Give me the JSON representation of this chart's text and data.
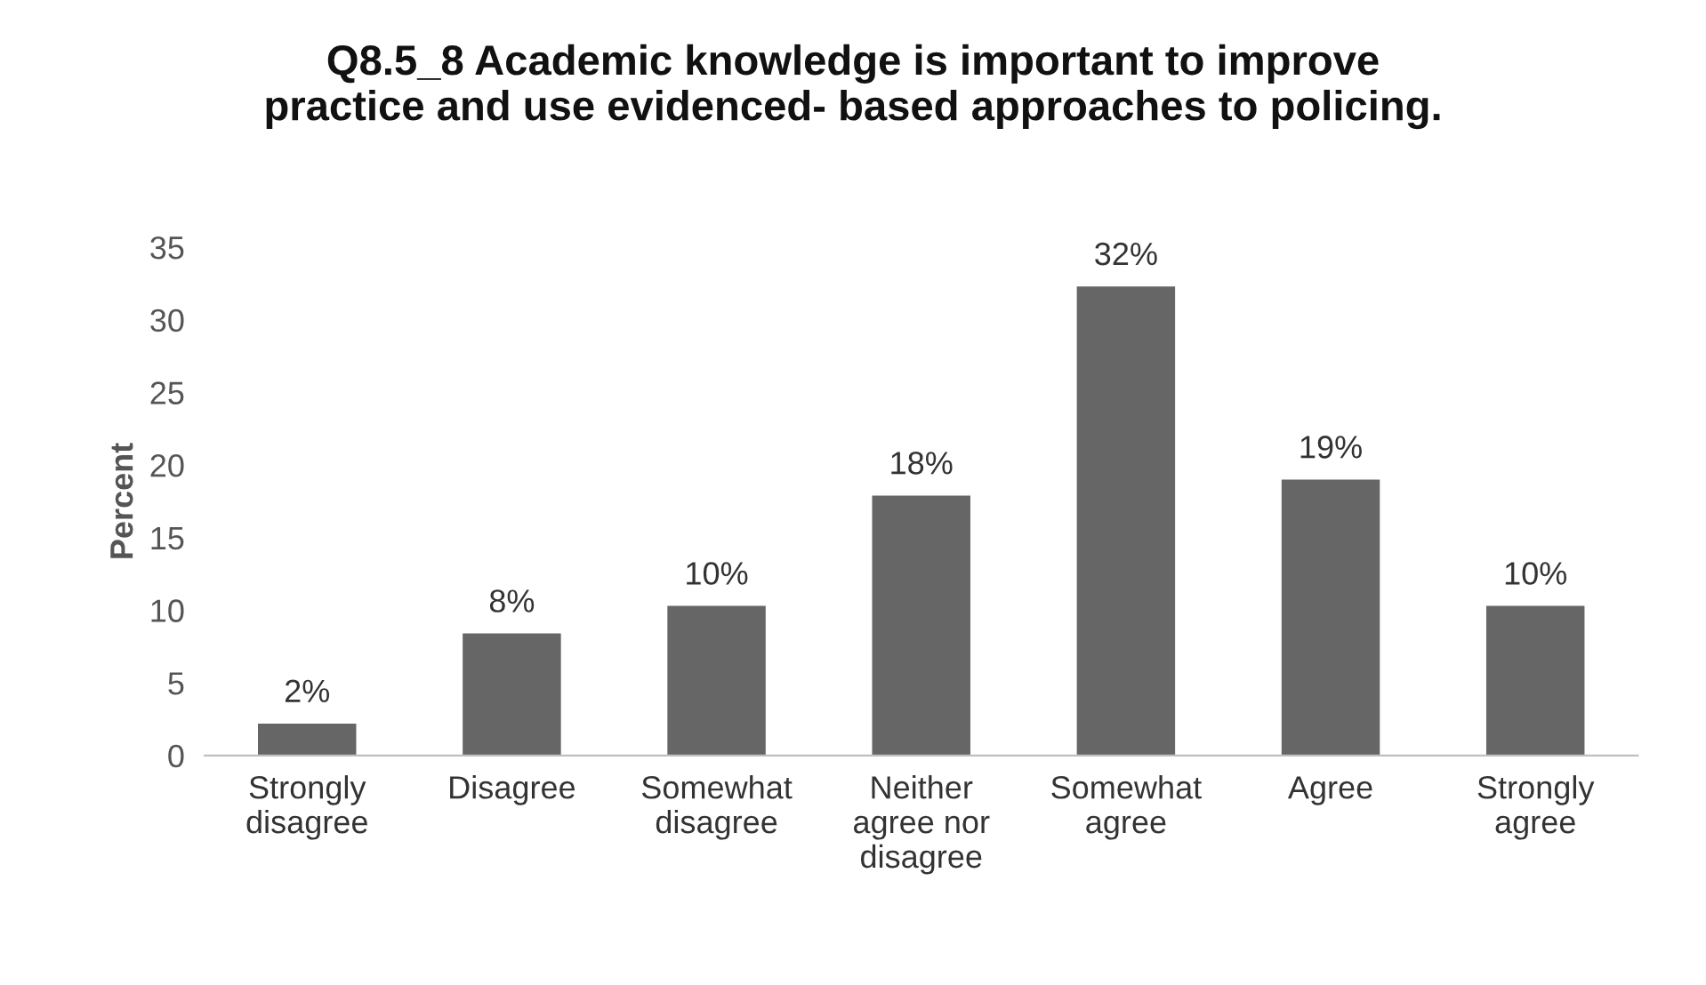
{
  "chart_data": {
    "type": "bar",
    "title": "Q8.5_8 Academic knowledge is important to improve\npractice and use evidenced- based approaches to policing.",
    "ylabel": "Percent",
    "categories": [
      "Strongly\ndisagree",
      "Disagree",
      "Somewhat\ndisagree",
      "Neither\nagree nor\ndisagree",
      "Somewhat\nagree",
      "Agree",
      "Strongly\nagree"
    ],
    "values": [
      2.2,
      8.4,
      10.3,
      17.9,
      32.3,
      19.0,
      10.3
    ],
    "value_labels": [
      "2%",
      "8%",
      "10%",
      "18%",
      "32%",
      "19%",
      "10%"
    ],
    "color": "#666666",
    "ylim": [
      0,
      35
    ],
    "yticks": [
      0,
      5,
      10,
      15,
      20,
      25,
      30,
      35
    ],
    "grid": false,
    "legend": false
  }
}
